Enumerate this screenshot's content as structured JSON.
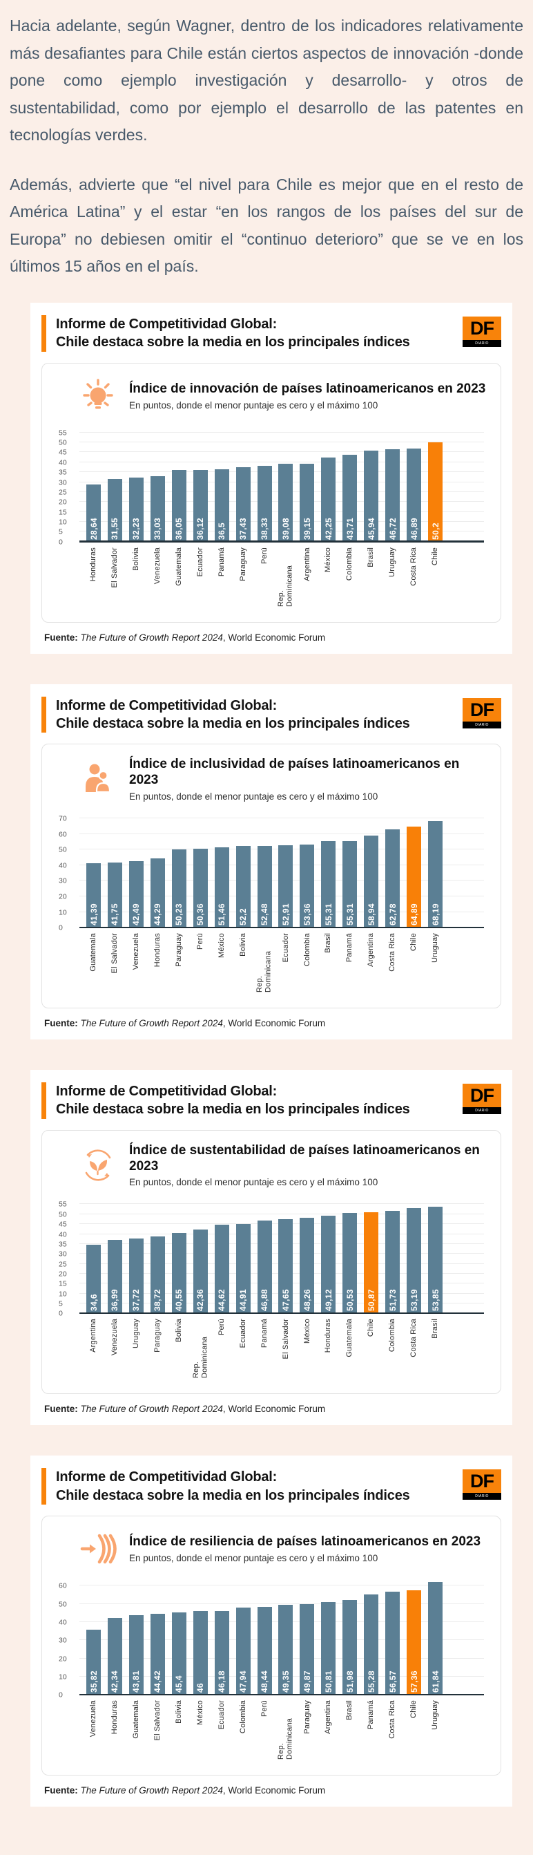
{
  "page": {
    "background": "#fbefe8",
    "paragraphs": [
      "Hacia adelante, según Wagner, dentro de los indicadores relativamente más desafiantes para Chile están ciertos aspectos de innovación -donde pone como ejemplo investigación y desarrollo- y otros de sustentabilidad, como por ejemplo el desarrollo de las patentes en tecnologías verdes.",
      "Además, advierte que “el nivel para Chile es mejor que en el resto de América Latina” y el estar “en los rangos de los países del sur de Europa” no debiesen omitir el “continuo deterioro” que se ve en los últimos 15 años en el país."
    ]
  },
  "branding": {
    "header_title_line1": "Informe de Competitividad Global:",
    "header_title_line2": "Chile destaca sobre la media en los principales índices",
    "logo_text": "DF",
    "logo_subtext": "DIARIO FINANCIERO",
    "accent_color": "#f8830a",
    "bar_color": "#5b7f94",
    "highlight_color": "#f88008"
  },
  "source": {
    "label": "Fuente:",
    "report": "The Future of Growth Report 2024",
    "publisher": ", World Economic Forum"
  },
  "chart_data": [
    {
      "type": "bar",
      "icon": "lightbulb-icon",
      "title": "Índice de innovación de países latinoamericanos en 2023",
      "subtitle": "En puntos, donde el menor puntaje es cero y el máximo 100",
      "ylim": [
        0,
        55
      ],
      "ytick_step": 5,
      "grid": true,
      "legend": "none",
      "highlight_category": "Chile",
      "categories": [
        "Honduras",
        "El Salvador",
        "Bolivia",
        "Venezuela",
        "Guatemala",
        "Ecuador",
        "Panamá",
        "Paraguay",
        "Perú",
        "Rep. Dominicana",
        "Argentina",
        "México",
        "Colombia",
        "Brasil",
        "Uruguay",
        "Costa Rica",
        "Chile"
      ],
      "values": [
        28.64,
        31.55,
        32.23,
        33.03,
        36.05,
        36.12,
        36.5,
        37.43,
        38.33,
        39.08,
        39.15,
        42.25,
        43.71,
        45.94,
        46.72,
        46.89,
        50.2
      ],
      "values_display": [
        "28,64",
        "31,55",
        "32,23",
        "33,03",
        "36,05",
        "36,12",
        "36,5",
        "37,43",
        "38,33",
        "39,08",
        "39,15",
        "42,25",
        "43,71",
        "45,94",
        "46,72",
        "46,89",
        "50,2"
      ]
    },
    {
      "type": "bar",
      "icon": "inclusion-people-icon",
      "title": "Índice de inclusividad de países latinoamericanos en 2023",
      "subtitle": "En puntos, donde el menor puntaje es cero y el máximo 100",
      "ylim": [
        0,
        70
      ],
      "ytick_step": 10,
      "grid": true,
      "legend": "none",
      "highlight_category": "Chile",
      "categories": [
        "Guatemala",
        "El Salvador",
        "Venezuela",
        "Honduras",
        "Paraguay",
        "Perú",
        "México",
        "Bolivia",
        "Rep. Dominicana",
        "Ecuador",
        "Colombia",
        "Brasil",
        "Panamá",
        "Argentina",
        "Costa Rica",
        "Chile",
        "Uruguay"
      ],
      "values": [
        41.39,
        41.75,
        42.49,
        44.29,
        50.23,
        50.36,
        51.46,
        52.2,
        52.48,
        52.91,
        53.36,
        55.31,
        55.31,
        58.94,
        62.78,
        64.89,
        68.19
      ],
      "values_display": [
        "41,39",
        "41,75",
        "42,49",
        "44,29",
        "50,23",
        "50,36",
        "51,46",
        "52,2",
        "52,48",
        "52,91",
        "53,36",
        "55,31",
        "55,31",
        "58,94",
        "62,78",
        "64,89",
        "68,19"
      ]
    },
    {
      "type": "bar",
      "icon": "sustainability-leaves-icon",
      "title": "Índice de sustentabilidad de países latinoamericanos en 2023",
      "subtitle": "En puntos, donde el menor puntaje es cero y el máximo 100",
      "ylim": [
        0,
        55
      ],
      "ytick_step": 5,
      "grid": true,
      "legend": "none",
      "highlight_category": "Chile",
      "categories": [
        "Argentina",
        "Venezuela",
        "Uruguay",
        "Paraguay",
        "Bolivia",
        "Rep. Dominicana",
        "Perú",
        "Ecuador",
        "Panamá",
        "El Salvador",
        "México",
        "Honduras",
        "Guatemala",
        "Chile",
        "Colombia",
        "Costa Rica",
        "Brasil"
      ],
      "values": [
        34.6,
        36.99,
        37.72,
        38.72,
        40.55,
        42.36,
        44.62,
        44.91,
        46.88,
        47.65,
        48.26,
        49.12,
        50.53,
        50.87,
        51.73,
        53.19,
        53.85
      ],
      "values_display": [
        "34,6",
        "36,99",
        "37,72",
        "38,72",
        "40,55",
        "42,36",
        "44,62",
        "44,91",
        "46,88",
        "47,65",
        "48,26",
        "49,12",
        "50,53",
        "50,87",
        "51,73",
        "53,19",
        "53,85"
      ]
    },
    {
      "type": "bar",
      "icon": "resilience-arrow-icon",
      "title": "Índice de resiliencia de países latinoamericanos en 2023",
      "subtitle": "En puntos, donde el menor puntaje es cero y el máximo 100",
      "ylim": [
        0,
        60
      ],
      "ytick_step": 10,
      "grid": true,
      "legend": "none",
      "highlight_category": "Chile",
      "categories": [
        "Venezuela",
        "Honduras",
        "Guatemala",
        "El Salvador",
        "Bolivia",
        "México",
        "Ecuador",
        "Colombia",
        "Perú",
        "Rep. Dominicana",
        "Paraguay",
        "Argentina",
        "Brasil",
        "Panamá",
        "Costa Rica",
        "Chile",
        "Uruguay"
      ],
      "values": [
        35.82,
        42.34,
        43.81,
        44.42,
        45.4,
        46,
        46.18,
        47.94,
        48.44,
        49.35,
        49.87,
        50.81,
        51.98,
        55.28,
        56.57,
        57.36,
        61.84
      ],
      "values_display": [
        "35,82",
        "42,34",
        "43,81",
        "44,42",
        "45,4",
        "46",
        "46,18",
        "47,94",
        "48,44",
        "49,35",
        "49,87",
        "50,81",
        "51,98",
        "55,28",
        "56,57",
        "57,36",
        "61,84"
      ]
    }
  ]
}
